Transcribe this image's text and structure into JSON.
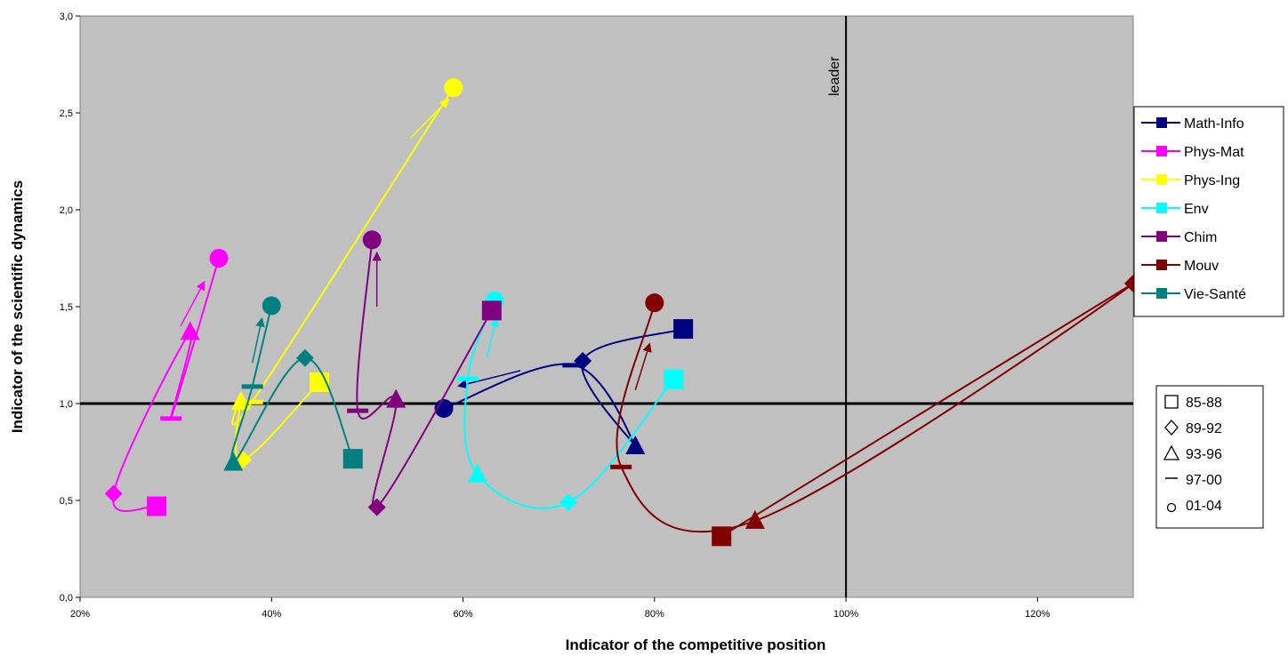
{
  "chart_data": {
    "type": "scatter",
    "xlabel": "Indicator of the competitive position",
    "ylabel": "Indicator of the scientific dynamics",
    "xlim": [
      0.2,
      1.3
    ],
    "ylim": [
      0,
      3
    ],
    "x_ticks": [
      0.2,
      0.4,
      0.6,
      0.8,
      1.0,
      1.2
    ],
    "x_tick_labels": [
      "20%",
      "40%",
      "60%",
      "80%",
      "100%",
      "120%"
    ],
    "y_ticks": [
      0,
      0.5,
      1,
      1.5,
      2,
      2.5,
      3
    ],
    "y_tick_labels": [
      "0,0",
      "0,5",
      "1,0",
      "1,5",
      "2,0",
      "2,5",
      "3,0"
    ],
    "grid": false,
    "plot_background": "#c0c0c0",
    "reference_lines": [
      {
        "orientation": "horizontal",
        "value": 1.0,
        "label": ""
      },
      {
        "orientation": "vertical",
        "value": 1.0,
        "label": "leader"
      }
    ],
    "legend_position": "right",
    "period_legend": {
      "entries": [
        {
          "marker": "square",
          "label": "85-88"
        },
        {
          "marker": "diamond",
          "label": "89-92"
        },
        {
          "marker": "triangle",
          "label": "93-96"
        },
        {
          "marker": "dash",
          "label": "97-00"
        },
        {
          "marker": "circle",
          "label": "01-04"
        }
      ]
    },
    "series": [
      {
        "name": "Math-Info",
        "color": "#000080",
        "points": [
          [
            0.83,
            1.385
          ],
          [
            0.725,
            1.22
          ],
          [
            0.78,
            0.78
          ],
          [
            0.715,
            1.2
          ],
          [
            0.58,
            0.975
          ]
        ],
        "arrow": [
          [
            0.66,
            1.17
          ],
          [
            0.595,
            1.09
          ]
        ]
      },
      {
        "name": "Phys-Mat",
        "color": "#ff00ff",
        "points": [
          [
            0.28,
            0.47
          ],
          [
            0.235,
            0.535
          ],
          [
            0.315,
            1.37
          ],
          [
            0.295,
            0.925
          ],
          [
            0.345,
            1.75
          ]
        ],
        "arrow": [
          [
            0.305,
            1.4
          ],
          [
            0.33,
            1.63
          ]
        ]
      },
      {
        "name": "Phys-Ing",
        "color": "#ffff00",
        "points": [
          [
            0.45,
            1.11
          ],
          [
            0.37,
            0.71
          ],
          [
            0.368,
            1.01
          ],
          [
            0.38,
            1.01
          ],
          [
            0.59,
            2.63
          ]
        ],
        "arrow": [
          [
            0.545,
            2.37
          ],
          [
            0.585,
            2.57
          ]
        ]
      },
      {
        "name": "Env",
        "color": "#00ffff",
        "points": [
          [
            0.82,
            1.125
          ],
          [
            0.71,
            0.49
          ],
          [
            0.615,
            0.635
          ],
          [
            0.605,
            1.13
          ],
          [
            0.633,
            1.53
          ]
        ],
        "arrow": [
          [
            0.625,
            1.24
          ],
          [
            0.635,
            1.44
          ]
        ]
      },
      {
        "name": "Chim",
        "color": "#800080",
        "points": [
          [
            0.63,
            1.48
          ],
          [
            0.51,
            0.465
          ],
          [
            0.53,
            1.02
          ],
          [
            0.49,
            0.965
          ],
          [
            0.505,
            1.845
          ]
        ],
        "arrow": [
          [
            0.51,
            1.5
          ],
          [
            0.51,
            1.78
          ]
        ]
      },
      {
        "name": "Mouv",
        "color": "#800000",
        "points": [
          [
            0.87,
            0.315
          ],
          [
            1.3,
            1.62
          ],
          [
            0.905,
            0.395
          ],
          [
            0.765,
            0.675
          ],
          [
            0.8,
            1.52
          ]
        ],
        "arrow": [
          [
            0.78,
            1.07
          ],
          [
            0.795,
            1.31
          ]
        ]
      },
      {
        "name": "Vie-Santé",
        "color": "#008080",
        "points": [
          [
            0.485,
            0.715
          ],
          [
            0.435,
            1.235
          ],
          [
            0.36,
            0.695
          ],
          [
            0.38,
            1.09
          ],
          [
            0.4,
            1.505
          ]
        ],
        "arrow": [
          [
            0.38,
            1.21
          ],
          [
            0.39,
            1.44
          ]
        ]
      }
    ]
  }
}
